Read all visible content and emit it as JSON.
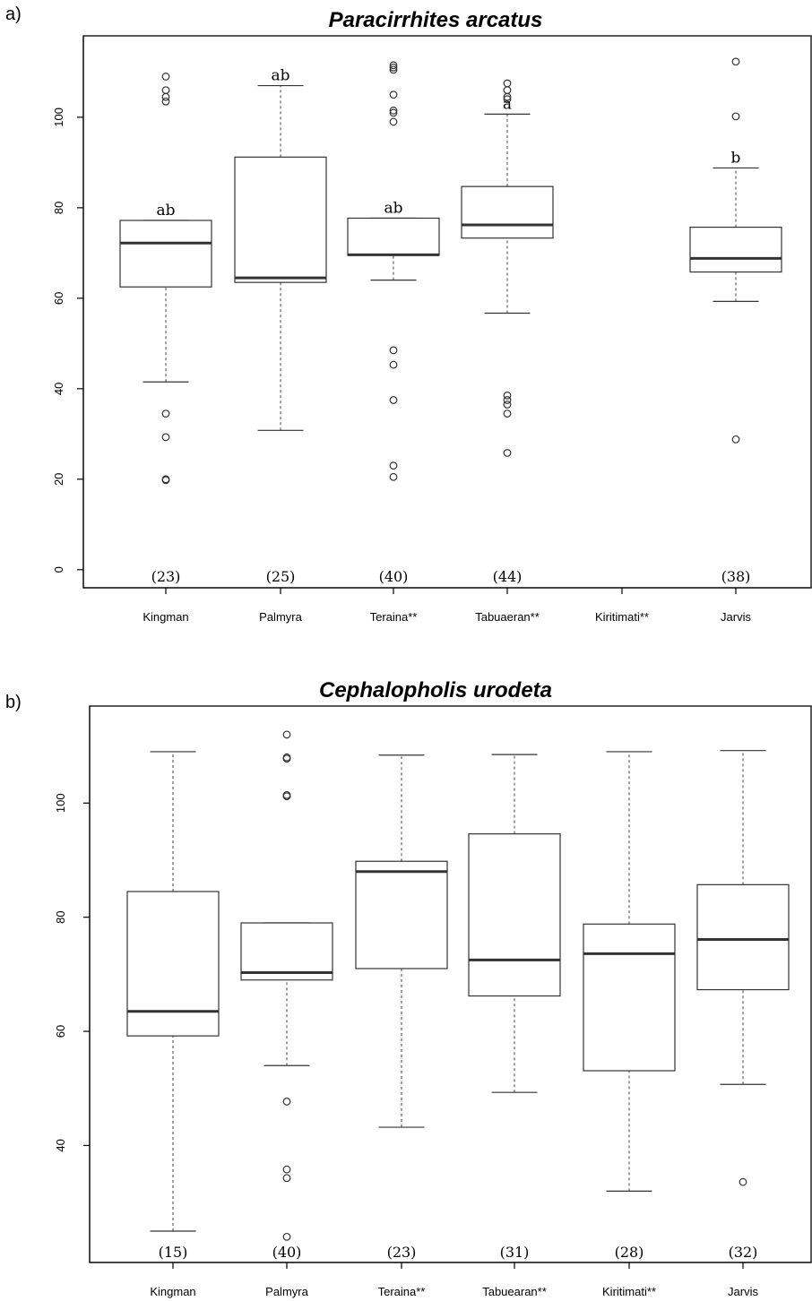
{
  "chart_data": [
    {
      "type": "box",
      "panel_label": "a)",
      "title": "Paracirrhites arcatus",
      "categories": [
        "Kingman",
        "Palmyra",
        "Teraina**",
        "Tabuaeran**",
        "Kiritimati**",
        "Jarvis"
      ],
      "yticks": [
        0,
        20,
        40,
        60,
        80,
        100
      ],
      "ylim": [
        -4,
        118
      ],
      "boxes": [
        {
          "category": "Kingman",
          "lower_whisker": 41.5,
          "q1": 62.5,
          "median": 72.2,
          "q3": 77.2,
          "upper_whisker": 77.2,
          "outliers": [
            19.8,
            20.0,
            29.3,
            34.5,
            103.5,
            104.5,
            106.0,
            109.0
          ],
          "count": "(23)",
          "sig": "ab"
        },
        {
          "category": "Palmyra",
          "lower_whisker": 30.8,
          "q1": 63.5,
          "median": 64.5,
          "q3": 91.2,
          "upper_whisker": 107.0,
          "outliers": [],
          "count": "(25)",
          "sig": "ab"
        },
        {
          "category": "Teraina**",
          "lower_whisker": 64.0,
          "q1": 69.5,
          "median": 69.6,
          "q3": 77.7,
          "upper_whisker": 77.7,
          "outliers": [
            20.5,
            23.0,
            37.5,
            45.3,
            48.5,
            99.0,
            101.0,
            101.5,
            105.0,
            110.5,
            111.0,
            111.5
          ],
          "count": "(40)",
          "sig": "ab"
        },
        {
          "category": "Tabuaeran**",
          "lower_whisker": 56.7,
          "q1": 73.3,
          "median": 76.2,
          "q3": 84.7,
          "upper_whisker": 100.7,
          "outliers": [
            25.8,
            34.5,
            36.5,
            37.5,
            38.5,
            104.0,
            104.5,
            106.0,
            107.5
          ],
          "count": "(44)",
          "sig": "a"
        },
        {
          "category": "Kiritimati**",
          "lower_whisker": null,
          "q1": null,
          "median": null,
          "q3": null,
          "upper_whisker": null,
          "outliers": [],
          "count": "",
          "sig": ""
        },
        {
          "category": "Jarvis",
          "lower_whisker": 59.3,
          "q1": 65.8,
          "median": 68.8,
          "q3": 75.7,
          "upper_whisker": 88.8,
          "outliers": [
            28.8,
            100.2,
            112.3
          ],
          "count": "(38)",
          "sig": "b"
        }
      ]
    },
    {
      "type": "box",
      "panel_label": "b)",
      "title": "Cephalopholis urodeta",
      "categories": [
        "Kingman",
        "Palmyra",
        "Teraina**",
        "Tabuearan**",
        "Kiritimati**",
        "Jarvis"
      ],
      "yticks": [
        40,
        60,
        80,
        100
      ],
      "ylim": [
        19.5,
        117
      ],
      "boxes": [
        {
          "category": "Kingman",
          "lower_whisker": 25.0,
          "q1": 59.2,
          "median": 63.5,
          "q3": 84.5,
          "upper_whisker": 109.0,
          "outliers": [],
          "count": "(15)"
        },
        {
          "category": "Palmyra",
          "lower_whisker": 54.0,
          "q1": 69.0,
          "median": 70.3,
          "q3": 79.0,
          "upper_whisker": 79.0,
          "outliers": [
            24.0,
            34.3,
            35.8,
            47.7,
            101.2,
            101.4,
            107.8,
            108.0,
            112.0
          ],
          "count": "(40)"
        },
        {
          "category": "Teraina**",
          "lower_whisker": 43.2,
          "q1": 71.0,
          "median": 88.0,
          "q3": 89.8,
          "upper_whisker": 108.4,
          "outliers": [],
          "count": "(23)"
        },
        {
          "category": "Tabuearan**",
          "lower_whisker": 49.3,
          "q1": 66.2,
          "median": 72.5,
          "q3": 94.6,
          "upper_whisker": 108.5,
          "outliers": [],
          "count": "(31)"
        },
        {
          "category": "Kiritimati**",
          "lower_whisker": 32.0,
          "q1": 53.1,
          "median": 73.6,
          "q3": 78.8,
          "upper_whisker": 109.0,
          "outliers": [],
          "count": "(28)"
        },
        {
          "category": "Jarvis",
          "lower_whisker": 50.7,
          "q1": 67.3,
          "median": 76.1,
          "q3": 85.7,
          "upper_whisker": 109.2,
          "outliers": [
            33.6
          ],
          "count": "(32)"
        }
      ]
    }
  ]
}
